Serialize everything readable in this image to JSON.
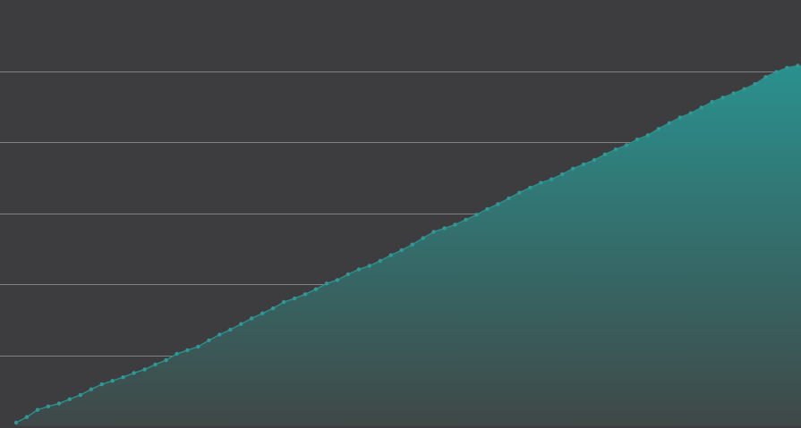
{
  "colors": {
    "background": "#3d3c3e",
    "gridline": "#9a9a9a",
    "line": "#2a8f8c",
    "fill_top": "#2a918e",
    "fill_bottom": "#3f4847",
    "point": "#2f9995"
  },
  "chart_data": {
    "type": "area",
    "title": "",
    "xlabel": "",
    "ylabel": "",
    "grid": true,
    "gridlines_y": [
      1,
      2,
      3,
      4,
      5
    ],
    "ylim": [
      0,
      5.98
    ],
    "xlim": [
      0,
      73.3
    ],
    "x": [
      0,
      1,
      2,
      3,
      4,
      5,
      6,
      7,
      8,
      9,
      10,
      11,
      12,
      13,
      14,
      15,
      16,
      17,
      18,
      19,
      20,
      21,
      22,
      23,
      24,
      25,
      26,
      27,
      28,
      29,
      30,
      31,
      32,
      33,
      34,
      35,
      36,
      37,
      38,
      39,
      40,
      41,
      42,
      43,
      44,
      45,
      46,
      47,
      48,
      49,
      50,
      51,
      52,
      53,
      54,
      55,
      56,
      57,
      58,
      59,
      60,
      61,
      62,
      63,
      64,
      65,
      66,
      67,
      68,
      69,
      70,
      71,
      72,
      73
    ],
    "series": [
      {
        "values": [
          0.05,
          0.13,
          0.23,
          0.28,
          0.32,
          0.38,
          0.44,
          0.52,
          0.59,
          0.64,
          0.69,
          0.75,
          0.8,
          0.87,
          0.93,
          1.02,
          1.07,
          1.12,
          1.21,
          1.29,
          1.36,
          1.44,
          1.52,
          1.59,
          1.66,
          1.75,
          1.8,
          1.86,
          1.93,
          2.01,
          2.06,
          2.14,
          2.21,
          2.26,
          2.33,
          2.41,
          2.48,
          2.56,
          2.65,
          2.74,
          2.79,
          2.84,
          2.91,
          2.98,
          3.06,
          3.13,
          3.21,
          3.29,
          3.36,
          3.43,
          3.48,
          3.55,
          3.63,
          3.69,
          3.75,
          3.83,
          3.9,
          3.96,
          4.04,
          4.1,
          4.19,
          4.27,
          4.35,
          4.41,
          4.49,
          4.57,
          4.63,
          4.69,
          4.75,
          4.82,
          4.92,
          4.99,
          5.05,
          5.08
        ]
      }
    ]
  }
}
